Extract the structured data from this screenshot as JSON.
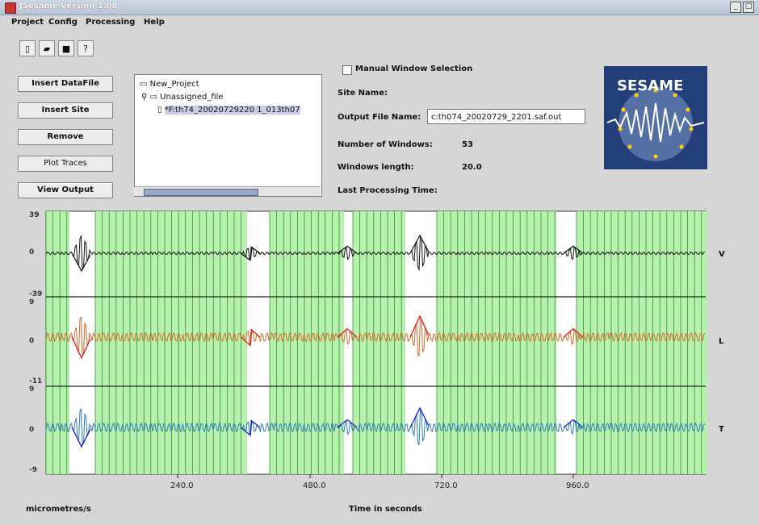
{
  "window": {
    "title": "JSesame Version 1.08",
    "controls": [
      "_",
      "□"
    ]
  },
  "menu": [
    "Project",
    "Config",
    "Processing",
    "Help"
  ],
  "toolbar": [
    "new-icon",
    "open-icon",
    "save-icon",
    "help-icon"
  ],
  "buttons": [
    "Insert DataFile",
    "Insert Site",
    "Remove",
    "Plot Traces",
    "View Output"
  ],
  "tree": {
    "root": "New_Project",
    "group": "Unassigned_file",
    "file": "*F:th74_20020729220 1_013th07"
  },
  "panel": {
    "manual_window": "Manual Window Selection",
    "site_name_label": "Site Name:",
    "output_label": "Output File Name:",
    "output_value": "c:th074_20020729_2201.saf.out",
    "windows_label": "Number of Windows:",
    "windows_value": "53",
    "length_label": "Windows length:",
    "length_value": "20.0",
    "last_proc_label": "Last Processing Time:"
  },
  "logo": {
    "text": "SESAME",
    "bg": "#233f7a"
  },
  "plot": {
    "components": [
      "V",
      "L",
      "T"
    ],
    "y_ticks": [
      {
        "top": "39",
        "zero": "0",
        "bottom": "-39"
      },
      {
        "top": "9",
        "zero": "0",
        "bottom": "-11"
      },
      {
        "top": "9",
        "zero": "0",
        "bottom": "-9"
      }
    ],
    "x_ticks": [
      "240.0",
      "480.0",
      "720.0",
      "960.0"
    ],
    "y_unit": "micrometres/s",
    "x_label": "Time in seconds",
    "colors": {
      "window": "#b8f0b0",
      "window_border": "#1c8a1c",
      "V": "#111111",
      "L": "#d46a2a",
      "L_event": "#e01010",
      "T": "#2a7db5",
      "T_event": "#1010d0"
    }
  }
}
